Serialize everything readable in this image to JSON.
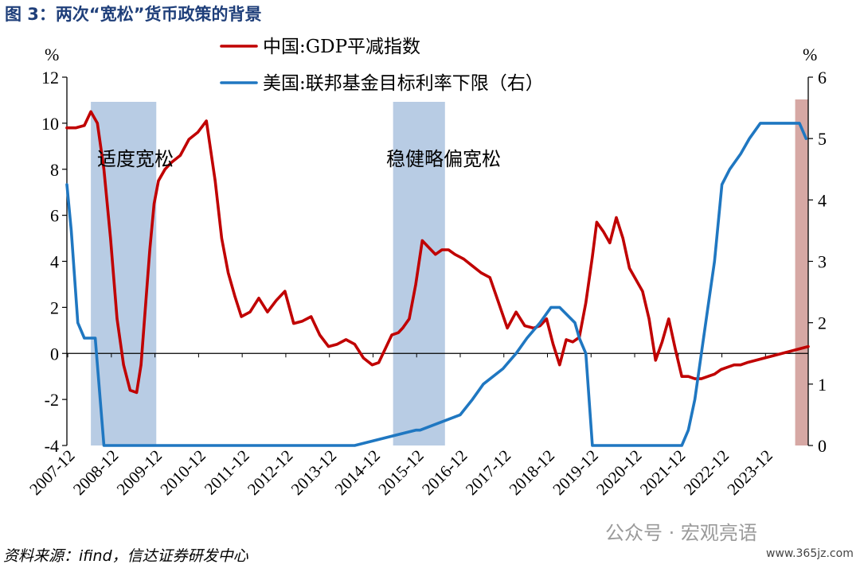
{
  "figure_title": "图 3：两次“宽松”货币政策的背景",
  "source": "资料来源：ifind，信达证券研发中心",
  "watermark": {
    "text": "公众号 · 宏观亮语",
    "url": "www.365jz.com"
  },
  "chart_data": {
    "type": "line",
    "left_unit": "%",
    "right_unit": "%",
    "ylim_left": [
      -4,
      12
    ],
    "ylim_right": [
      0,
      6
    ],
    "left_ticks": [
      "12",
      "10",
      "8",
      "6",
      "4",
      "2",
      "0",
      "-2",
      "-4"
    ],
    "right_ticks": [
      "6",
      "5",
      "4",
      "3",
      "2",
      "1",
      "0"
    ],
    "x_range": [
      2007.9,
      2024.9
    ],
    "x_tick_labels": [
      "2007-12",
      "2008-12",
      "2009-12",
      "2010-12",
      "2011-12",
      "2012-12",
      "2013-12",
      "2014-12",
      "2015-12",
      "2016-12",
      "2017-12",
      "2018-12",
      "2019-12",
      "2020-12",
      "2021-12",
      "2022-12",
      "2023-12"
    ],
    "x_tick_values": [
      2007.92,
      2008.92,
      2009.92,
      2010.92,
      2011.92,
      2012.92,
      2013.92,
      2014.92,
      2015.92,
      2016.92,
      2017.92,
      2018.92,
      2019.92,
      2020.92,
      2021.92,
      2022.92,
      2023.92
    ],
    "shaded_periods": [
      {
        "label": "适度宽松",
        "start": 2008.45,
        "end": 2009.95,
        "color": "#b8cce4"
      },
      {
        "label": "稳健略偏宽松",
        "start": 2015.38,
        "end": 2016.57,
        "color": "#b8cce4"
      },
      {
        "label": "",
        "start": 2024.6,
        "end": 2024.9,
        "color": "#d6a8a4"
      }
    ],
    "series": [
      {
        "name": "中国:GDP平减指数",
        "axis": "left",
        "color": "#c00000",
        "x": [
          2007.9,
          2008.1,
          2008.3,
          2008.45,
          2008.6,
          2008.75,
          2008.9,
          2009.05,
          2009.2,
          2009.35,
          2009.5,
          2009.6,
          2009.7,
          2009.8,
          2009.9,
          2010.0,
          2010.15,
          2010.3,
          2010.5,
          2010.7,
          2010.9,
          2011.1,
          2011.3,
          2011.45,
          2011.6,
          2011.75,
          2011.9,
          2012.1,
          2012.3,
          2012.5,
          2012.7,
          2012.9,
          2013.1,
          2013.3,
          2013.5,
          2013.7,
          2013.9,
          2014.1,
          2014.3,
          2014.5,
          2014.7,
          2014.9,
          2015.05,
          2015.2,
          2015.35,
          2015.5,
          2015.6,
          2015.75,
          2015.9,
          2016.05,
          2016.2,
          2016.35,
          2016.5,
          2016.65,
          2016.8,
          2016.9,
          2017.0,
          2017.2,
          2017.4,
          2017.6,
          2017.8,
          2018.0,
          2018.2,
          2018.4,
          2018.6,
          2018.75,
          2018.9,
          2019.05,
          2019.2,
          2019.35,
          2019.5,
          2019.65,
          2019.8,
          2019.95,
          2020.05,
          2020.2,
          2020.35,
          2020.5,
          2020.65,
          2020.8,
          2020.95,
          2021.1,
          2021.25,
          2021.4,
          2021.55,
          2021.7,
          2021.85,
          2022.0,
          2022.15,
          2022.3,
          2022.45,
          2022.6,
          2022.75,
          2022.9,
          2023.05,
          2023.2,
          2023.35,
          2023.5,
          2023.7,
          2023.9,
          2024.1,
          2024.3,
          2024.5,
          2024.7,
          2024.9
        ],
        "values": [
          9.8,
          9.8,
          9.9,
          10.5,
          10.0,
          8.0,
          5.0,
          1.5,
          -0.5,
          -1.6,
          -1.7,
          -0.5,
          2.0,
          4.5,
          6.5,
          7.5,
          8.0,
          8.3,
          8.6,
          9.3,
          9.6,
          10.1,
          7.5,
          5.0,
          3.5,
          2.5,
          1.6,
          1.8,
          2.4,
          1.8,
          2.3,
          2.7,
          1.3,
          1.4,
          1.6,
          0.8,
          0.3,
          0.4,
          0.6,
          0.4,
          -0.2,
          -0.5,
          -0.4,
          0.2,
          0.8,
          0.9,
          1.1,
          1.5,
          3.0,
          4.9,
          4.6,
          4.3,
          4.5,
          4.5,
          4.3,
          4.2,
          4.1,
          3.8,
          3.5,
          3.3,
          2.2,
          1.1,
          1.8,
          1.2,
          1.1,
          1.2,
          1.5,
          0.4,
          -0.5,
          0.6,
          0.5,
          0.7,
          2.2,
          4.2,
          5.7,
          5.3,
          4.8,
          5.9,
          5.0,
          3.7,
          3.2,
          2.7,
          1.5,
          -0.3,
          0.5,
          1.5,
          0.2,
          -1.0,
          -1.0,
          -1.1,
          -1.1,
          -1.0,
          -0.9,
          -0.7,
          -0.6,
          -0.5,
          -0.5,
          -0.4,
          -0.3,
          -0.2,
          -0.1,
          0.0,
          0.1,
          0.2,
          0.3
        ],
        "x_trim_note": ""
      },
      {
        "name": "美国:联邦基金目标利率下限（右）",
        "axis": "right",
        "color": "#1f77c1",
        "x": [
          2007.9,
          2008.0,
          2008.15,
          2008.3,
          2008.4,
          2008.55,
          2008.75,
          2008.92,
          2009.5,
          2010.5,
          2011.5,
          2012.5,
          2013.5,
          2014.5,
          2015.9,
          2016.0,
          2016.92,
          2017.2,
          2017.45,
          2017.9,
          2018.2,
          2018.45,
          2018.75,
          2019.0,
          2019.2,
          2019.55,
          2019.65,
          2019.8,
          2019.95,
          2020.15,
          2020.3,
          2021.0,
          2022.0,
          2022.15,
          2022.3,
          2022.45,
          2022.6,
          2022.75,
          2022.92,
          2023.1,
          2023.35,
          2023.55,
          2023.8,
          2024.5,
          2024.7,
          2024.85
        ],
        "values": [
          4.25,
          3.5,
          2.0,
          1.75,
          1.75,
          1.75,
          0.0,
          0.0,
          0.0,
          0.0,
          0.0,
          0.0,
          0.0,
          0.0,
          0.25,
          0.25,
          0.5,
          0.75,
          1.0,
          1.25,
          1.5,
          1.75,
          2.0,
          2.25,
          2.25,
          2.0,
          1.75,
          1.5,
          0.0,
          0.0,
          0.0,
          0.0,
          0.0,
          0.25,
          0.75,
          1.5,
          2.25,
          3.0,
          4.25,
          4.5,
          4.75,
          5.0,
          5.25,
          5.25,
          5.25,
          5.0
        ],
        "x_trim_note": ""
      }
    ]
  }
}
